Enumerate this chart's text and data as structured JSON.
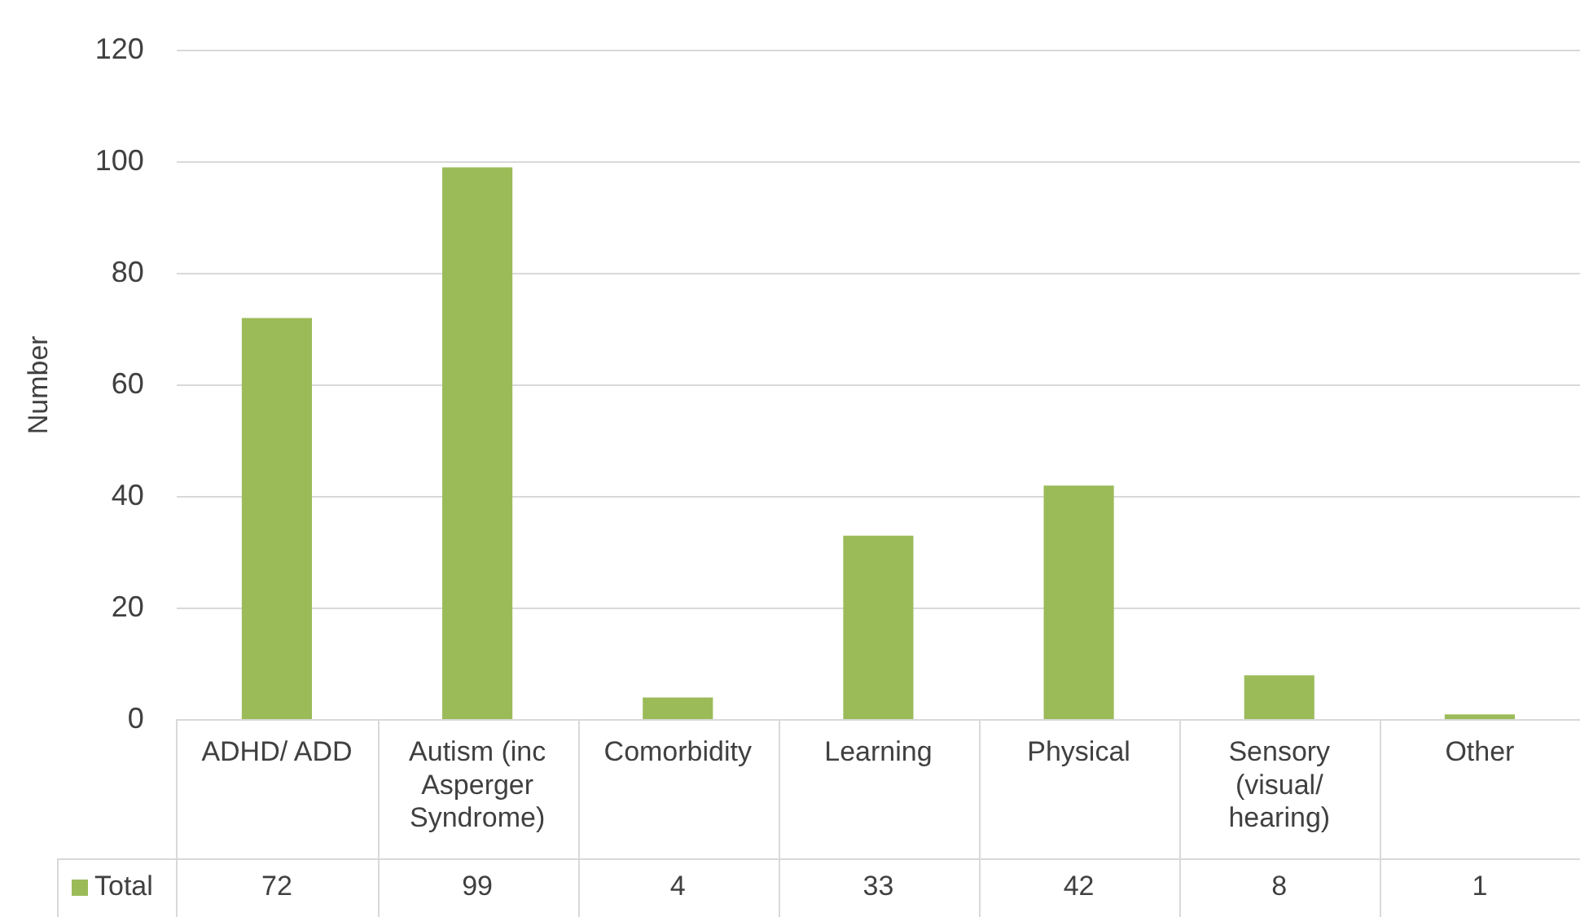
{
  "chart_data": {
    "type": "bar",
    "ylabel": "Number",
    "categories": [
      "ADHD/ ADD",
      "Autism (inc Asperger Syndrome)",
      "Comorbidity",
      "Learning",
      "Physical",
      "Sensory (visual/ hearing)",
      "Other"
    ],
    "series": [
      {
        "name": "Total",
        "color": "#9bbb59",
        "values": [
          72,
          99,
          4,
          33,
          42,
          8,
          1
        ]
      }
    ],
    "ylim": [
      0,
      120
    ],
    "yticks": [
      0,
      20,
      40,
      60,
      80,
      100,
      120
    ],
    "grid": "y",
    "data_labels": true
  }
}
